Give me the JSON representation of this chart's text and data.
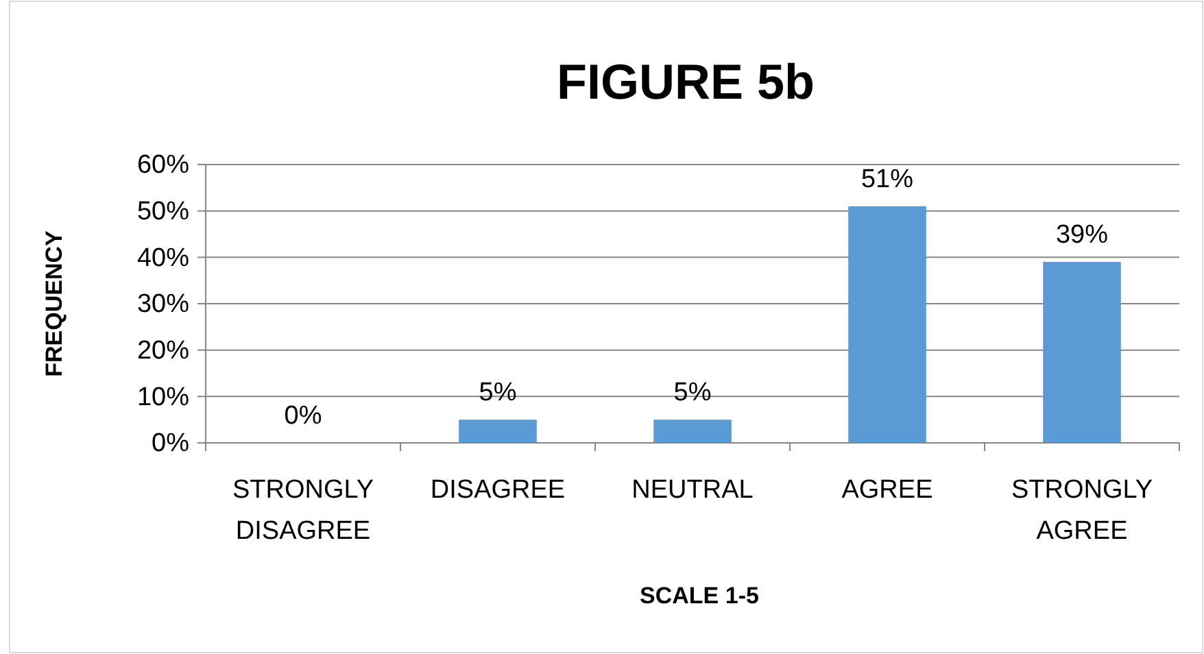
{
  "chart_data": {
    "type": "bar",
    "title": "FIGURE 5b",
    "xlabel": "SCALE 1-5",
    "ylabel": "FREQUENCY",
    "categories": [
      "STRONGLY DISAGREE",
      "DISAGREE",
      "NEUTRAL",
      "AGREE",
      "STRONGLY AGREE"
    ],
    "values": [
      0,
      5,
      5,
      51,
      39
    ],
    "color": "#5b9bd5",
    "value_labels": [
      "0%",
      "5%",
      "5%",
      "51%",
      "39%"
    ],
    "ylim": [
      0,
      60
    ],
    "yticks": [
      {
        "value": 0,
        "label": "0%"
      },
      {
        "value": 10,
        "label": "10%"
      },
      {
        "value": 20,
        "label": "20%"
      },
      {
        "value": 30,
        "label": "30%"
      },
      {
        "value": 40,
        "label": "40%"
      },
      {
        "value": 50,
        "label": "50%"
      },
      {
        "value": 60,
        "label": "60%"
      }
    ],
    "grid": "y"
  }
}
